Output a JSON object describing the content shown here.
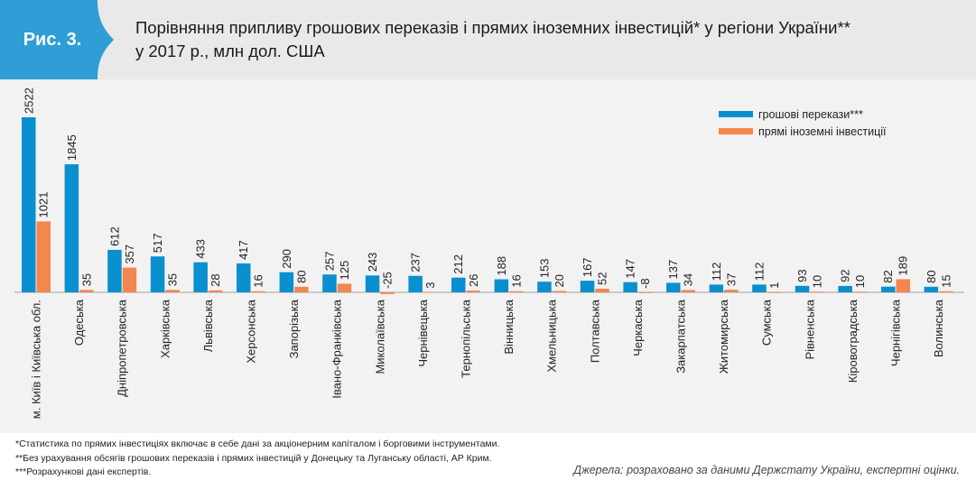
{
  "figure": {
    "label": "Рис. 3.",
    "title_line1": "Порівняння припливу грошових переказів і прямих іноземних інвестицій* у регіони України**",
    "title_line2": "у 2017 р., млн дол. США"
  },
  "colors": {
    "header_bg": "#e9e9e9",
    "badge": "#2f9ed6",
    "remittances": "#0a8fcf",
    "fdi": "#f2874f",
    "panel_bg": "#f2f2f2"
  },
  "chart_data": {
    "type": "bar",
    "categories": [
      "м. Київ і Київська обл.",
      "Одеська",
      "Дніпропетровська",
      "Харківська",
      "Львівська",
      "Херсонська",
      "Запорізька",
      "Івано-Франківська",
      "Миколаївська",
      "Чернівецька",
      "Тернопільська",
      "Вінницька",
      "Хмельницька",
      "Полтавська",
      "Черкаська",
      "Закарпатська",
      "Житомирська",
      "Сумська",
      "Рівненська",
      "Кіровоградська",
      "Чернігівська",
      "Волинська"
    ],
    "series": [
      {
        "name": "грошові перекази***",
        "values": [
          2522,
          1845,
          612,
          517,
          433,
          417,
          290,
          257,
          243,
          237,
          212,
          188,
          153,
          167,
          147,
          137,
          112,
          112,
          93,
          92,
          82,
          80
        ]
      },
      {
        "name": "прямі іноземні інвестиції",
        "values": [
          1021,
          35,
          357,
          35,
          28,
          16,
          80,
          125,
          -25,
          3,
          26,
          16,
          20,
          52,
          -8,
          34,
          37,
          1,
          10,
          10,
          189,
          15
        ]
      }
    ],
    "data_labels": true,
    "legend_position": "top-right",
    "grid": false
  },
  "notes": [
    "*Статистика по прямих інвестиціях включає в себе дані за акціонерним капіталом і борговими інструментами.",
    "**Без урахування обсягів грошових переказів і прямих інвестицій у Донецьку та Луганську області, АР Крим.",
    "***Розрахункові дані експертів."
  ],
  "source": "Джерела: розраховано за даними Держстату України, експертні оцінки."
}
